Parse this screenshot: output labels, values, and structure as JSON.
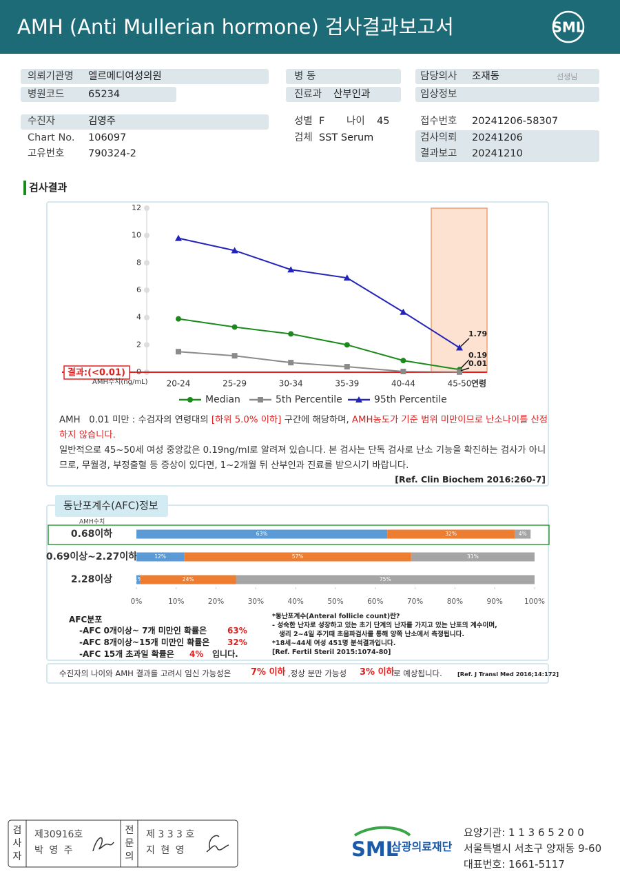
{
  "header": {
    "title": "AMH (Anti Mullerian hormone) 검사결과보고서",
    "logo": "SML"
  },
  "info": {
    "requesting_org": {
      "label": "의뢰기관명",
      "value": "엘르메디여성의원"
    },
    "hospital_code": {
      "label": "병원코드",
      "value": "65234"
    },
    "patient": {
      "label": "수진자",
      "value": "김영주"
    },
    "chart_no": {
      "label": "Chart No.",
      "value": "106097"
    },
    "unique_no": {
      "label": "고유번호",
      "value": "790324-2"
    },
    "ward": {
      "label": "병 동"
    },
    "department": {
      "label": "진료과",
      "value": "산부인과"
    },
    "sex": {
      "label": "성별",
      "value": "F"
    },
    "age": {
      "label": "나이",
      "value": "45"
    },
    "specimen": {
      "label": "검체",
      "value": "SST Serum"
    },
    "doctor": {
      "label": "담당의사",
      "value": "조재동",
      "suffix": "선생님"
    },
    "clinical_info": {
      "label": "임상정보"
    },
    "receipt_no": {
      "label": "접수번호",
      "value": "20241206-58307"
    },
    "request_date": {
      "label": "검사의뢰",
      "value": "20241206"
    },
    "report_date": {
      "label": "결과보고",
      "value": "20241210"
    }
  },
  "section_title": "검사결과",
  "chart_data": [
    {
      "type": "line",
      "categories": [
        "20-24",
        "25-29",
        "30-34",
        "35-39",
        "40-44",
        "45-50"
      ],
      "xlabel": "연령",
      "ylabel": "AMH수치(ng/mL)",
      "annotation": "결과:(<0.01)",
      "ylim": [
        0,
        12
      ],
      "yticks": [
        0,
        2,
        4,
        6,
        8,
        10,
        12
      ],
      "series": [
        {
          "name": "Median",
          "color": "#1a8a1a",
          "marker": "circle",
          "values": [
            3.9,
            3.3,
            2.8,
            2.0,
            0.85,
            0.19
          ]
        },
        {
          "name": "5th Percentile",
          "color": "#8a8a8a",
          "marker": "square",
          "values": [
            1.5,
            1.2,
            0.7,
            0.4,
            0.05,
            0.01
          ]
        },
        {
          "name": "95th Percentile",
          "color": "#2424b8",
          "marker": "triangle",
          "values": [
            9.8,
            8.9,
            7.5,
            6.9,
            4.4,
            1.79
          ]
        }
      ]
    },
    {
      "type": "bar",
      "orientation": "horizontal",
      "stacked": true,
      "title": "동난포계수(AFC)정보",
      "ylabel": "AMH수치",
      "categories": [
        "0.68이하",
        "0.69이상~2.27이하",
        "2.28이상"
      ],
      "xlim": [
        0,
        100
      ],
      "xticks": [
        {
          "value": 0,
          "label": "0%"
        },
        {
          "value": 10,
          "label": "10%"
        },
        {
          "value": 20,
          "label": "20%"
        },
        {
          "value": 30,
          "label": "30%"
        },
        {
          "value": 40,
          "label": "40%"
        },
        {
          "value": 50,
          "label": "50%"
        },
        {
          "value": 60,
          "label": "60%"
        },
        {
          "value": 70,
          "label": "70%"
        },
        {
          "value": 80,
          "label": "80%"
        },
        {
          "value": 90,
          "label": "90%"
        },
        {
          "value": 100,
          "label": "100%"
        }
      ],
      "series": [
        {
          "color": "#5b9bd5",
          "values": [
            63,
            12,
            1
          ],
          "value_labels": [
            "63%",
            "12%",
            "1%"
          ]
        },
        {
          "color": "#ed7d31",
          "values": [
            32,
            57,
            24
          ],
          "value_labels": [
            "32%",
            "57%",
            "24%"
          ]
        },
        {
          "color": "#a5a5a5",
          "values": [
            4,
            31,
            75
          ],
          "value_labels": [
            "4%",
            "31%",
            "75%"
          ]
        }
      ]
    }
  ],
  "interpretation": {
    "p1": [
      "AMH   0.01 미만 : 수검자의 연령대의 ",
      "[하위 5.0% 이하]",
      " 구간에 해당하며, ",
      "AMH농도가 기준 범위 미만이므로 난소나이를 산정하지 않습니다."
    ],
    "p2": "일반적으로 45~50세 여성 중앙값은 0.19ng/ml로 알려져 있습니다. 본 검사는 단독 검사로 난소 기능을 확진하는 검사가 아니므로, 무월경, 부정출혈 등 증상이 있다면, 1~2개월 뒤 산부인과 진료를 받으시기 바랍니다.",
    "ref": "[Ref. Clin Biochem 2016:260-7]"
  },
  "afc_summary": {
    "title": "AFC분포",
    "items": [
      {
        "text": "-AFC 0개이상~ 7개 미만인 확률은",
        "pct": "63%"
      },
      {
        "text": "-AFC 8개이상~15개 미만인 확률은",
        "pct": "32%"
      },
      {
        "text": "-AFC 15개 초과일 확률은",
        "pct": "4%",
        "suffix": "입니다."
      }
    ],
    "notes": [
      "*동난포계수(Anteral follicle count)란?",
      "- 성숙한 난자로 성장하고 있는 초기 단계의 난자를 가지고 있는 난포의 계수이며,",
      "생리 2~4일 주기때 초음파검사를 통해 양쪽 난소에서 측정됩니다.",
      "*18세~44세 여성 451명 분석결과입니다.",
      "[Ref. Fertil Steril 2015:1074-80]"
    ]
  },
  "outcome": {
    "lead": "수진자의 나이와 AMH 결과를 고려시 임신 가능성은",
    "pregnancy": "7% 이하",
    "middle": ",정상 분만 가능성",
    "delivery": "3% 이하",
    "tail": "로 예상됩니다.",
    "ref": "[Ref. J Transl Med 2016;14:172]"
  },
  "footer": {
    "tester": {
      "title": "검사자",
      "license": "제30916호",
      "name": "박 영 주"
    },
    "specialist": {
      "title": "전문의",
      "license": "제 3 3 3 호",
      "name": "지 현 영"
    },
    "org_logo": "SML",
    "org_name": "삼광의료재단",
    "institution": "요양기관: 1 1 3 6 5 2 0 0",
    "address": "서울특별시 서초구 양재동 9-60",
    "phone": "대표번호: 1661-5117"
  }
}
